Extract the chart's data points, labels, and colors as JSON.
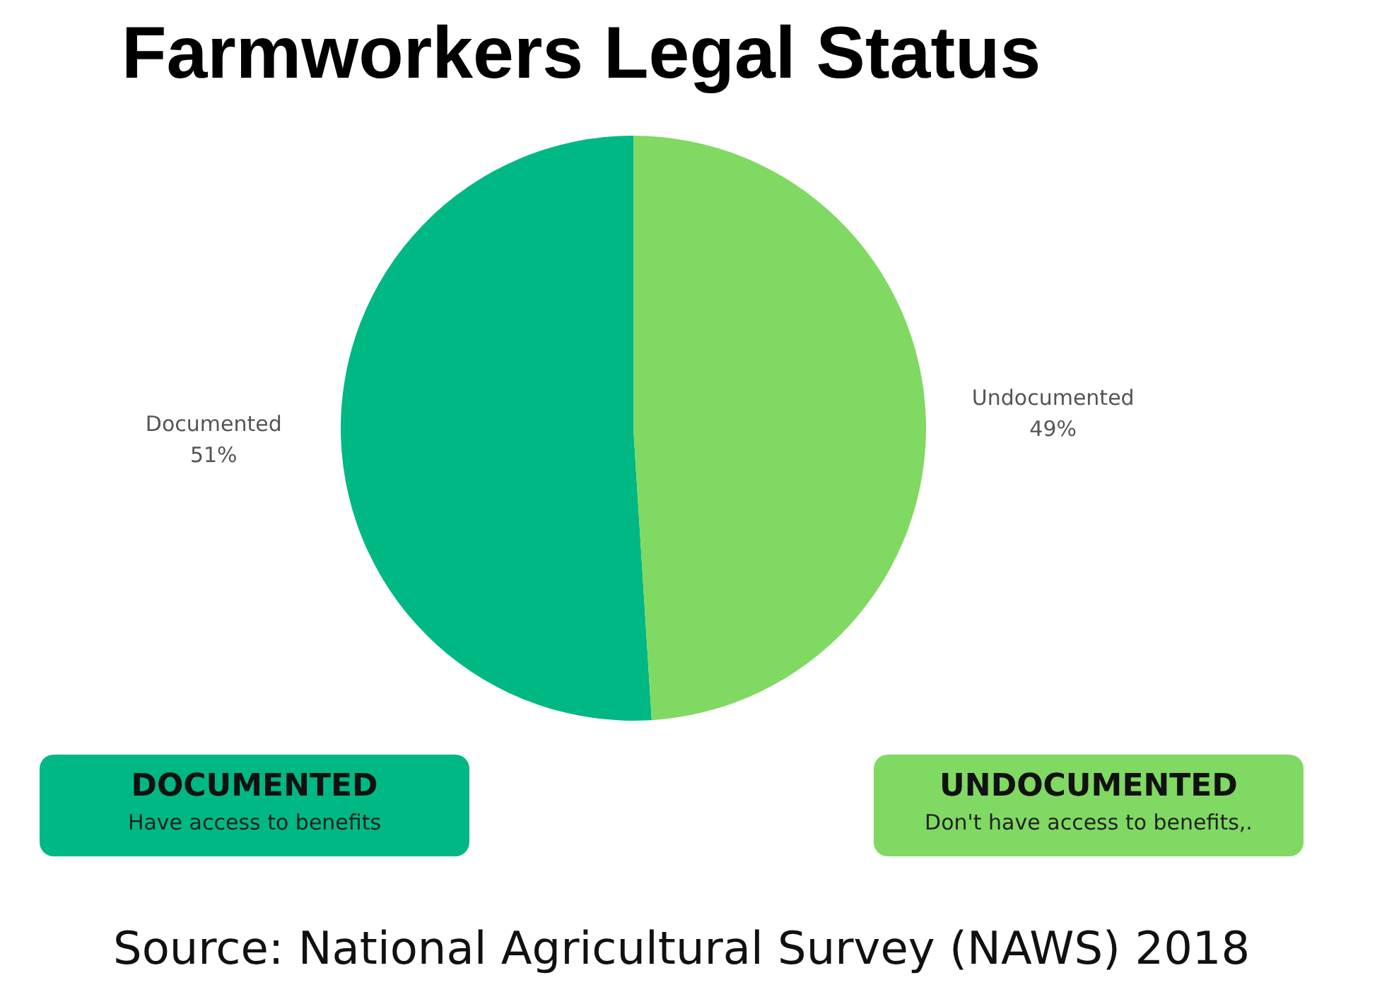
{
  "chart_data": {
    "type": "pie",
    "title": "Farmworkers Legal Status",
    "categories": [
      "Documented",
      "Undocumented"
    ],
    "values": [
      51,
      49
    ],
    "value_labels": [
      "51%",
      "49%"
    ],
    "colors": [
      "#00b884",
      "#80d962"
    ],
    "legend": false,
    "annotations": [
      "DOCUMENTED",
      "Have access to benefits",
      "UNDOCUMENTED",
      "Don't have access to benefits,.",
      "Source: National Agricultural Survey (NAWS) 2018"
    ]
  }
}
